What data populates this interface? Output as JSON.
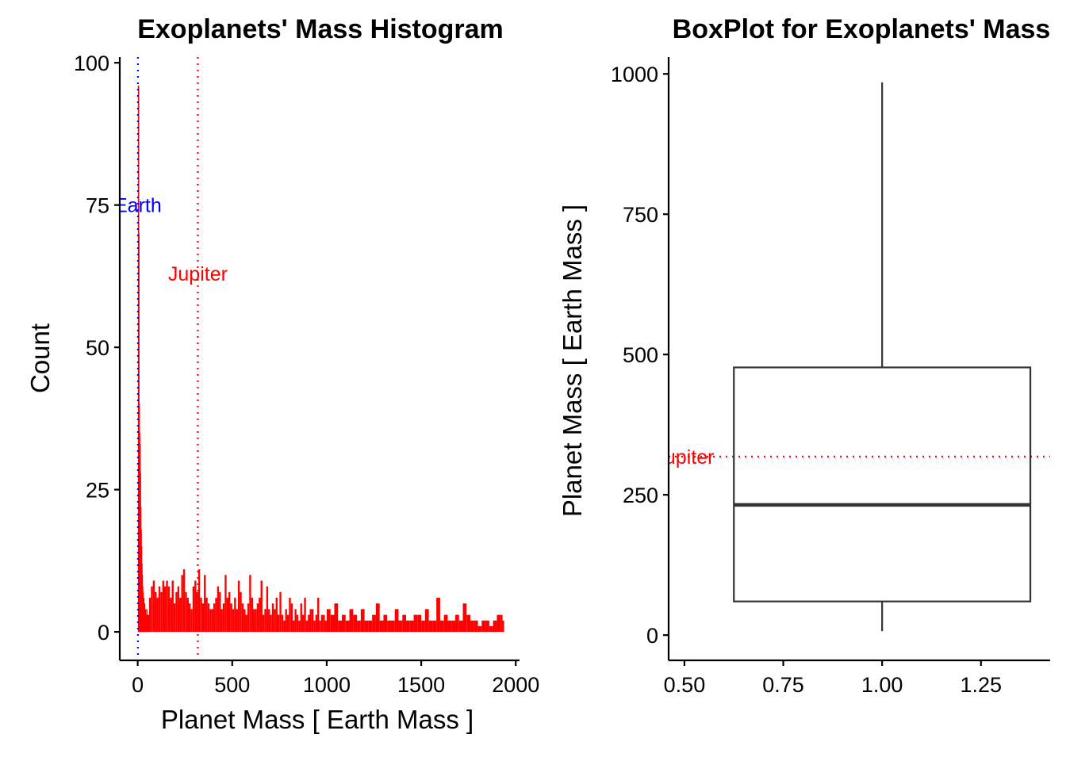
{
  "chart_data": [
    {
      "type": "bar",
      "title": "Exoplanets' Mass Histogram",
      "xlabel": "Planet  Mass  [ Earth Mass ]",
      "ylabel": "Count",
      "xlim": [
        -95,
        2020
      ],
      "ylim": [
        -5,
        101
      ],
      "xticks": [
        0,
        500,
        1000,
        1500,
        2000
      ],
      "yticks": [
        0,
        25,
        50,
        75,
        100
      ],
      "bar_color": "#FF0000",
      "reference_lines": [
        {
          "label": "Earth",
          "x": 1,
          "color": "#0000FF",
          "label_y": 75
        },
        {
          "label": "Jupiter",
          "x": 318,
          "color": "#FF0000",
          "label_y": 63
        }
      ],
      "bins": {
        "x": [
          1,
          3,
          5,
          7,
          9,
          11,
          13,
          15,
          17,
          19,
          21,
          23,
          25,
          27,
          29,
          33,
          37,
          41,
          45,
          50,
          55,
          60,
          70,
          80,
          90,
          100,
          110,
          120,
          130,
          140,
          150,
          160,
          170,
          180,
          190,
          200,
          210,
          220,
          230,
          240,
          250,
          260,
          270,
          280,
          290,
          300,
          310,
          320,
          330,
          340,
          350,
          360,
          370,
          380,
          390,
          400,
          410,
          420,
          430,
          440,
          450,
          460,
          470,
          480,
          490,
          500,
          510,
          520,
          530,
          540,
          550,
          560,
          570,
          580,
          590,
          600,
          610,
          620,
          630,
          640,
          650,
          660,
          670,
          680,
          690,
          700,
          710,
          720,
          730,
          740,
          750,
          760,
          770,
          780,
          790,
          800,
          810,
          820,
          830,
          840,
          850,
          860,
          870,
          880,
          890,
          900,
          910,
          920,
          930,
          940,
          950,
          960,
          970,
          980,
          990,
          1000,
          1020,
          1040,
          1060,
          1080,
          1100,
          1120,
          1140,
          1160,
          1180,
          1200,
          1220,
          1240,
          1260,
          1280,
          1300,
          1320,
          1340,
          1360,
          1380,
          1400,
          1420,
          1440,
          1460,
          1480,
          1500,
          1520,
          1540,
          1560,
          1580,
          1600,
          1620,
          1640,
          1660,
          1680,
          1700,
          1720,
          1740,
          1760,
          1780,
          1800,
          1820,
          1840,
          1860,
          1880,
          1900,
          1920,
          1930
        ],
        "counts": [
          96,
          70,
          40,
          35,
          33,
          28,
          22,
          18,
          15,
          12,
          10,
          8,
          7,
          6,
          6,
          5,
          4,
          3,
          4,
          3,
          3,
          6,
          8,
          9,
          7,
          6,
          8,
          7,
          9,
          8,
          9,
          8,
          6,
          9,
          5,
          7,
          8,
          6,
          10,
          11,
          7,
          6,
          5,
          4,
          8,
          9,
          7,
          11,
          6,
          5,
          10,
          6,
          5,
          4,
          4,
          5,
          6,
          8,
          7,
          4,
          5,
          10,
          6,
          7,
          5,
          4,
          6,
          4,
          9,
          7,
          5,
          4,
          3,
          5,
          10,
          6,
          4,
          4,
          5,
          6,
          9,
          3,
          4,
          8,
          4,
          3,
          5,
          4,
          6,
          3,
          7,
          3,
          2,
          4,
          3,
          6,
          5,
          2,
          4,
          3,
          2,
          5,
          3,
          6,
          2,
          3,
          4,
          4,
          2,
          3,
          6,
          2,
          3,
          3,
          2,
          4,
          3,
          5,
          2,
          3,
          2,
          4,
          3,
          2,
          4,
          2,
          2,
          3,
          5,
          2,
          3,
          2,
          2,
          4,
          2,
          3,
          2,
          2,
          3,
          3,
          2,
          4,
          2,
          2,
          6,
          2,
          3,
          2,
          2,
          3,
          2,
          5,
          3,
          2,
          2,
          1,
          2,
          2,
          1,
          2,
          3,
          3,
          2
        ]
      }
    },
    {
      "type": "box",
      "title": "BoxPlot for Exoplanets' Mass",
      "xlabel": "",
      "ylabel": "Planet  Mass  [ Earth Mass ]",
      "xlim": [
        0.46,
        1.425
      ],
      "ylim": [
        -45,
        1030
      ],
      "xticks": [
        "0.50",
        "0.75",
        "1.00",
        "1.25"
      ],
      "yticks": [
        0,
        250,
        500,
        750,
        1000
      ],
      "box": {
        "x": 1.0,
        "width": 0.75,
        "whisker_low": 7,
        "q1": 60,
        "median": 232,
        "q3": 477,
        "whisker_high": 985
      },
      "reference_lines": [
        {
          "label": "Jupiter",
          "y": 318,
          "color": "#FF0000",
          "label_x": 0.5
        }
      ]
    }
  ]
}
